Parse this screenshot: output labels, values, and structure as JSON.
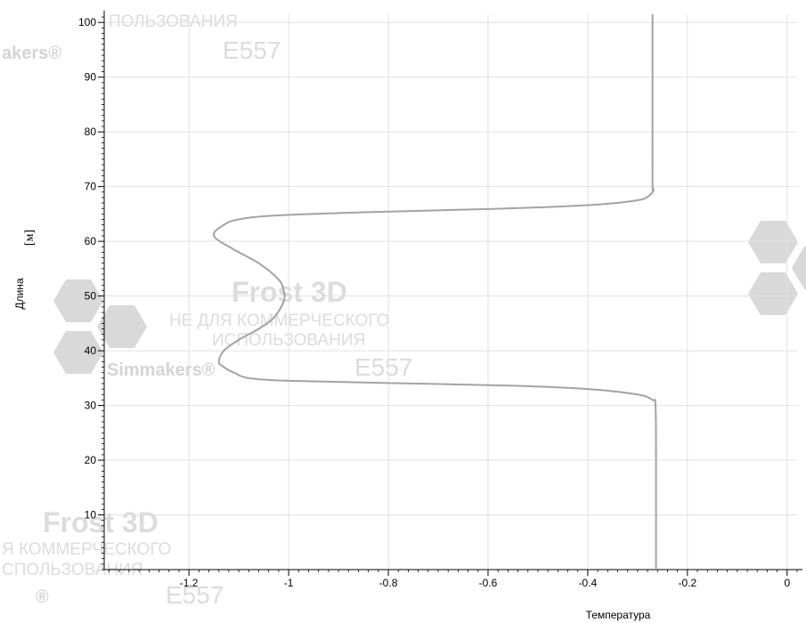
{
  "chart_data": {
    "type": "line",
    "xlabel": "Температура",
    "ylabel": "Длина",
    "yunit": "[м]",
    "xlim": [
      -1.37,
      0.02
    ],
    "ylim": [
      0,
      101.5
    ],
    "x_ticks": [
      -1.2,
      -1,
      -0.8,
      -0.6,
      -0.4,
      -0.2,
      0
    ],
    "x_tick_labels": [
      "-1.2",
      "-1",
      "-0.8",
      "-0.6",
      "-0.4",
      "-0.2",
      "0"
    ],
    "y_ticks": [
      10,
      20,
      30,
      40,
      50,
      60,
      70,
      80,
      90,
      100
    ],
    "y_tick_labels": [
      "10",
      "20",
      "30",
      "40",
      "50",
      "60",
      "70",
      "80",
      "90",
      "100"
    ],
    "grid": true,
    "legend": "none",
    "series": [
      {
        "color": "#a3a3a3",
        "points": [
          [
            -0.263,
            0
          ],
          [
            -0.263,
            10
          ],
          [
            -0.263,
            20
          ],
          [
            -0.264,
            30
          ],
          [
            -0.27,
            31
          ],
          [
            -0.3,
            32
          ],
          [
            -0.4,
            33
          ],
          [
            -0.55,
            33.6
          ],
          [
            -0.8,
            34.1
          ],
          [
            -1.0,
            34.5
          ],
          [
            -1.08,
            35
          ],
          [
            -1.11,
            36
          ],
          [
            -1.13,
            37
          ],
          [
            -1.14,
            38
          ],
          [
            -1.13,
            40
          ],
          [
            -1.1,
            42
          ],
          [
            -1.06,
            44
          ],
          [
            -1.03,
            46
          ],
          [
            -1.01,
            49
          ],
          [
            -1.01,
            51
          ],
          [
            -1.02,
            53
          ],
          [
            -1.06,
            56
          ],
          [
            -1.11,
            58.5
          ],
          [
            -1.15,
            61
          ],
          [
            -1.13,
            63
          ],
          [
            -1.1,
            64
          ],
          [
            -1.03,
            64.7
          ],
          [
            -0.85,
            65.3
          ],
          [
            -0.6,
            65.9
          ],
          [
            -0.4,
            66.6
          ],
          [
            -0.3,
            67.5
          ],
          [
            -0.275,
            68.5
          ],
          [
            -0.268,
            69.5
          ],
          [
            -0.27,
            70
          ],
          [
            -0.27,
            80
          ],
          [
            -0.27,
            90
          ],
          [
            -0.27,
            101.5
          ]
        ]
      }
    ]
  },
  "watermarks": [
    {
      "title": "",
      "line1": "ПОЛЬЗОВАНИЯ",
      "line2": "",
      "brand": "akers®",
      "code": "E557"
    },
    {
      "title": "Frost 3D",
      "line1": "НЕ ДЛЯ КОММЕРЧЕСКОГО",
      "line2": "ИСПОЛЬЗОВАНИЯ",
      "brand": "Simmakers®",
      "code": "E557"
    },
    {
      "title": "Frost 3D",
      "line1": "Я КОММЕРЧЕСКОГО",
      "line2": "СПОЛЬЗОВАНИЯ",
      "brand": "®",
      "code": "E557"
    }
  ]
}
